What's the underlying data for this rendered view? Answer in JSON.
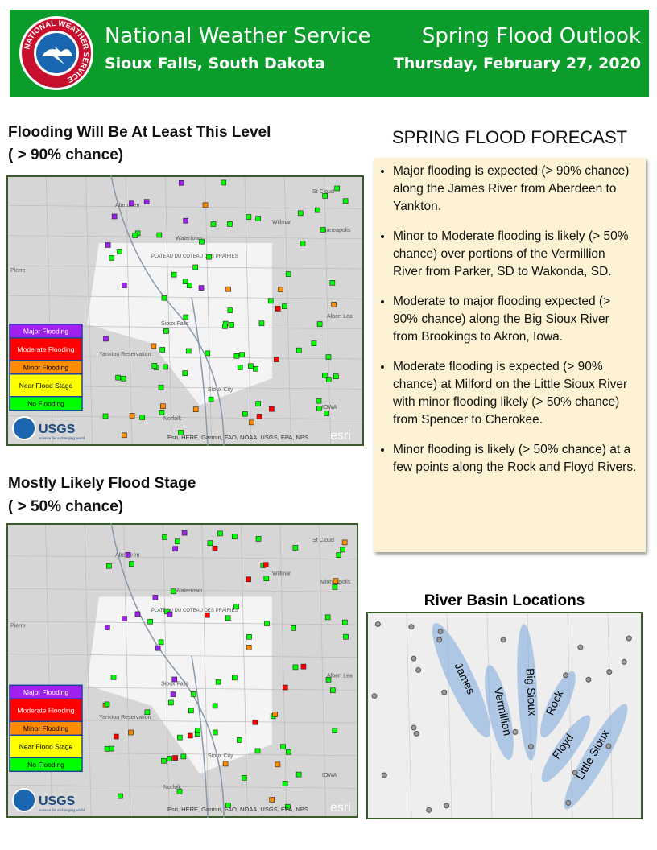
{
  "header": {
    "logo_text": "NATIONAL WEATHER SERVICE",
    "org": "National Weather Service",
    "location": "Sioux Falls, South Dakota",
    "title": "Spring Flood Outlook",
    "date": "Thursday, February 27, 2020"
  },
  "maps": [
    {
      "title": "Flooding Will Be At Least This Level",
      "subtitle": "( > 90% chance)"
    },
    {
      "title": "Mostly Likely Flood Stage",
      "subtitle": "( > 50% chance)"
    }
  ],
  "legend": [
    "Major Flooding",
    "Moderate Flooding",
    "Minor Flooding",
    "Near Flood Stage",
    "No Flooding"
  ],
  "map_labels": [
    "Aberdeen",
    "Watertown",
    "Pierre",
    "Sioux Falls",
    "Yankton Reservation",
    "Sioux City",
    "Norfolk",
    "Willmar",
    "St Cloud",
    "Minneapolis",
    "Albert Lea",
    "IOWA",
    "PLATEAU DU COTEAU DES PRAIRIES"
  ],
  "attribution": "Esri, HERE, Garmin, FAO, NOAA, USGS, EPA, NPS",
  "usgs": "USGS",
  "usgs_tag": "science for a changing world",
  "esri": "esri",
  "forecast": {
    "title": "SPRING FLOOD FORECAST",
    "bullets": [
      "Major flooding is expected (> 90% chance) along the James River from Aberdeen to Yankton.",
      "Minor to Moderate flooding is likely (> 50% chance) over portions of the Vermillion River from Parker, SD to Wakonda, SD.",
      "Moderate to major flooding expected (> 90% chance) along the Big Sioux River from Brookings to Akron, Iowa.",
      "Moderate flooding is expected (> 90% chance) at Milford on the Little Sioux River with minor flooding likely (> 50% chance) from Spencer to Cherokee.",
      "Minor flooding is likely (> 50% chance) at a few points along the Rock and Floyd Rivers."
    ]
  },
  "basins": {
    "title": "River Basin Locations",
    "rivers": [
      "James",
      "Vermillion",
      "Big Sioux",
      "Rock",
      "Floyd",
      "Little Sioux"
    ]
  }
}
